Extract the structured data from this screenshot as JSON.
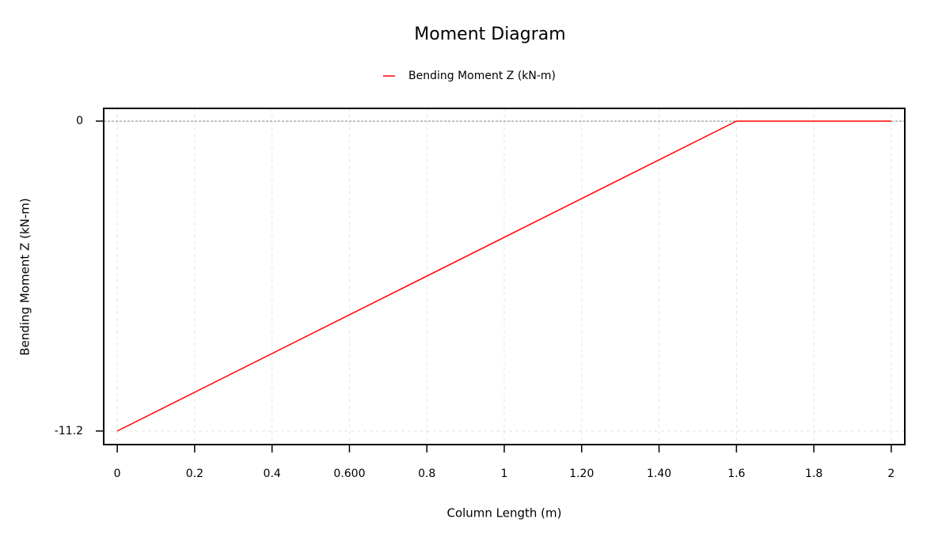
{
  "chart_data": {
    "type": "line",
    "title": "Moment Diagram",
    "x_label": "Column Length (m)",
    "y_label": "Bending Moment Z (kN-m)",
    "x": [
      0,
      1.6,
      2
    ],
    "series": [
      {
        "name": "Bending Moment Z (kN-m)",
        "color": "#ff0000",
        "values": [
          -11.2,
          0,
          0
        ]
      }
    ],
    "xlim": [
      -0.035,
      2.035
    ],
    "ylim": [
      -11.69,
      0.46
    ],
    "xticks": [
      0,
      0.2,
      0.4,
      {
        "value": 0.6,
        "label": "0.600"
      },
      0.8,
      1,
      {
        "value": 1.2,
        "label": "1.20"
      },
      {
        "value": 1.4,
        "label": "1.40"
      },
      1.6,
      1.8,
      2
    ],
    "yticks": [
      0,
      -11.2
    ],
    "grid": true,
    "legend": "top"
  }
}
